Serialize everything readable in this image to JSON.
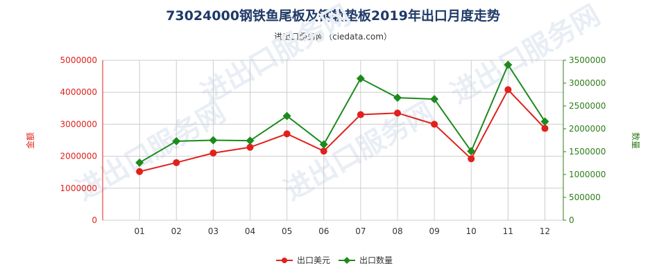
{
  "title": "73024000钢铁鱼尾板及钢轨垫板2019年出口月度走势",
  "subtitle": "进出口服务网（ciedata.com）",
  "watermark": "进出口服务网",
  "colors": {
    "series1": "#e0211b",
    "series2": "#1c8a1c",
    "grid": "#cccccc"
  },
  "chart_data": {
    "type": "line",
    "categories": [
      "01",
      "02",
      "03",
      "04",
      "05",
      "06",
      "07",
      "08",
      "09",
      "10",
      "11",
      "12"
    ],
    "y_left": {
      "label": "金额",
      "ylim": [
        0,
        5000000
      ],
      "ticks": [
        0,
        1000000,
        2000000,
        3000000,
        4000000,
        5000000
      ]
    },
    "y_right": {
      "label": "数量",
      "ylim": [
        0,
        3500000
      ],
      "ticks": [
        0,
        500000,
        1000000,
        1500000,
        2000000,
        2500000,
        3000000,
        3500000
      ]
    },
    "series": [
      {
        "name": "出口美元",
        "axis": "left",
        "marker": "circle",
        "values": [
          1520000,
          1800000,
          2100000,
          2280000,
          2700000,
          2160000,
          3300000,
          3350000,
          3000000,
          1920000,
          4080000,
          2870000
        ]
      },
      {
        "name": "出口数量",
        "axis": "right",
        "marker": "diamond",
        "values": [
          1260000,
          1730000,
          1750000,
          1740000,
          2280000,
          1660000,
          3100000,
          2680000,
          2650000,
          1510000,
          3400000,
          2160000
        ]
      }
    ],
    "grid": true,
    "legend": "bottom-center"
  }
}
